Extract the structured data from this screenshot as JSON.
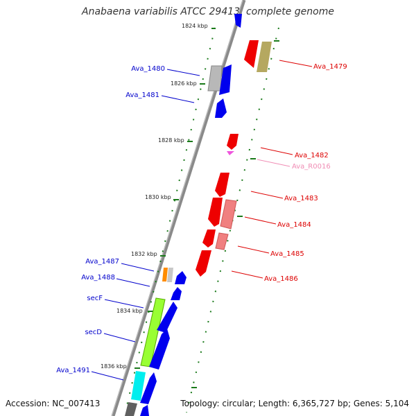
{
  "title": "Anabaena variabilis ATCC 29413, complete genome",
  "accession": "Accession: NC_007413",
  "topology": "Topology: circular; Length: 6,365,727 bp; Genes: 5,104",
  "colors": {
    "backbone": "#888888",
    "forward_label": "#0000cc",
    "reverse_label": "#dd0000",
    "rna_label": "#f08cb4",
    "tick": "#1a7a1a"
  },
  "kbp_ticks": [
    "1824 kbp",
    "1826 kbp",
    "1828 kbp",
    "1830 kbp",
    "1832 kbp",
    "1834 kbp",
    "1836 kbp"
  ],
  "left_genes": [
    "Ava_1480",
    "Ava_1481",
    "Ava_1487",
    "Ava_1488",
    "secF",
    "secD",
    "Ava_1491"
  ],
  "right_genes": [
    "Ava_1479",
    "Ava_1482",
    "Ava_R0016",
    "Ava_1483",
    "Ava_1484",
    "Ava_1485",
    "Ava_1486"
  ]
}
